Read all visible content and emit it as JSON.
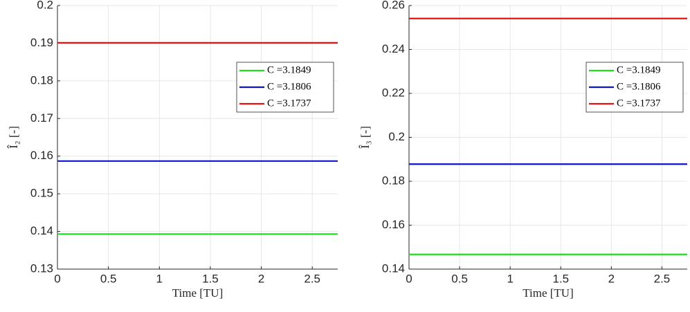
{
  "chart_data": [
    {
      "type": "line",
      "xlabel": "Time [TU]",
      "ylabel": "Î₂ [-]",
      "x": [
        0,
        2.75
      ],
      "series": [
        {
          "name": "C =3.1849",
          "color": "#1de01d",
          "values": [
            0.1393,
            0.1393
          ]
        },
        {
          "name": "C =3.1806",
          "color": "#0a14c8",
          "values": [
            0.1587,
            0.1587
          ]
        },
        {
          "name": "C =3.1737",
          "color": "#e81010",
          "values": [
            0.1901,
            0.1901
          ]
        }
      ],
      "xlim": [
        0,
        2.75
      ],
      "xticks": [
        0,
        0.5,
        1,
        1.5,
        2,
        2.5
      ],
      "ylim": [
        0.13,
        0.2
      ],
      "yticks": [
        0.13,
        0.14,
        0.15,
        0.16,
        0.17,
        0.18,
        0.19,
        0.2
      ],
      "grid": true,
      "legend": "upper right"
    },
    {
      "type": "line",
      "xlabel": "Time [TU]",
      "ylabel": "Î₃ [-]",
      "x": [
        0,
        2.75
      ],
      "series": [
        {
          "name": "C =3.1849",
          "color": "#1de01d",
          "values": [
            0.1467,
            0.1467
          ]
        },
        {
          "name": "C =3.1806",
          "color": "#0a14c8",
          "values": [
            0.1878,
            0.1878
          ]
        },
        {
          "name": "C =3.1737",
          "color": "#e81010",
          "values": [
            0.2541,
            0.2541
          ]
        }
      ],
      "xlim": [
        0,
        2.75
      ],
      "xticks": [
        0,
        0.5,
        1,
        1.5,
        2,
        2.5
      ],
      "ylim": [
        0.14,
        0.26
      ],
      "yticks": [
        0.14,
        0.16,
        0.18,
        0.2,
        0.22,
        0.24,
        0.26
      ],
      "grid": true,
      "legend": "upper right"
    }
  ]
}
